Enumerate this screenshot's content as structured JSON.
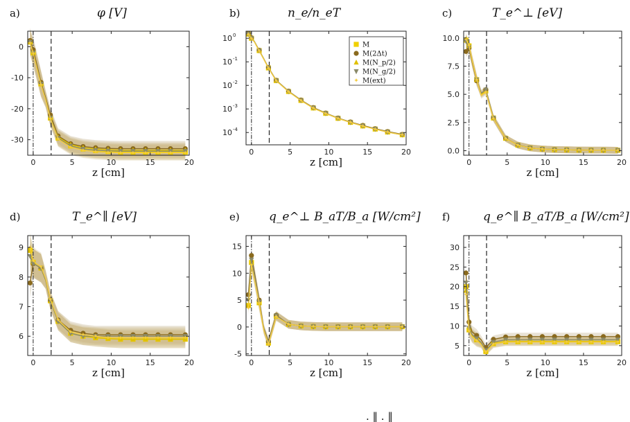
{
  "figure": {
    "xlabel": "z [cm]",
    "legend_entries": [
      "M",
      "M(2Δt)",
      "M(N_p/2)",
      "M(N_g/2)",
      "M(ext)"
    ],
    "footer_note": ". ‖ . ‖"
  },
  "colors": {
    "M": "#f0d000",
    "M(2Δt)": "#8a6a1e",
    "M(N_p/2)": "#e0c000",
    "M(N_g/2)": "#8a8a6a",
    "M(ext)": "#f4cc40",
    "band": "#c8b27a"
  },
  "chart_data": [
    {
      "panel": "a)",
      "title": "φ [V]",
      "type": "line",
      "xlim": [
        -0.7,
        20
      ],
      "ylim": [
        -35,
        5
      ],
      "yticks": [
        0,
        -10,
        -20,
        -30
      ],
      "xticks": [
        0,
        5,
        10,
        15,
        20
      ],
      "log": false,
      "x": [
        -0.4,
        0,
        0.4,
        1.0,
        1.6,
        2.2,
        3.2,
        4.8,
        6.4,
        8.0,
        9.6,
        11.2,
        12.8,
        14.4,
        16.0,
        17.6,
        19.5
      ],
      "series": [
        {
          "name": "M",
          "values": [
            1.5,
            -2,
            -6,
            -12,
            -17,
            -23,
            -29.5,
            -32,
            -33,
            -33.5,
            -33.8,
            -34,
            -34,
            -34,
            -34,
            -34,
            -34
          ]
        },
        {
          "name": "M(2Δt)",
          "values": [
            2.0,
            -1,
            -5,
            -11.5,
            -16.5,
            -22,
            -28.8,
            -31.3,
            -32.2,
            -32.6,
            -32.8,
            -32.9,
            -32.9,
            -32.9,
            -32.9,
            -32.9,
            -32.9
          ]
        },
        {
          "name": "M(N_p/2)",
          "values": [
            1.5,
            -2,
            -6,
            -12,
            -17,
            -23,
            -29.2,
            -31.6,
            -32.6,
            -33,
            -33.2,
            -33.4,
            -33.4,
            -33.4,
            -33.4,
            -33.4,
            -33.4
          ]
        },
        {
          "name": "M(N_g/2)",
          "values": [
            1.5,
            -2,
            -6,
            -12,
            -17,
            -23,
            -29.5,
            -32,
            -33,
            -33.4,
            -33.6,
            -33.7,
            -33.7,
            -33.7,
            -33.7,
            -33.7,
            -33.7
          ]
        },
        {
          "name": "M(ext)",
          "values": [
            1.2,
            -2.2,
            -6.2,
            -12.3,
            -17.2,
            -23.2,
            -29.8,
            -32.4,
            -33.4,
            -33.9,
            -34.1,
            -34.2,
            -34.2,
            -34.2,
            -34.2,
            -34.2,
            -34.2
          ]
        }
      ],
      "band": 2.5
    },
    {
      "panel": "b)",
      "title": "n_e/n_eT",
      "type": "line",
      "xlim": [
        -0.7,
        20
      ],
      "ylim": [
        3e-05,
        2
      ],
      "yticks": [
        1,
        0.1,
        0.01,
        0.001,
        0.0001
      ],
      "yticklabels": [
        "10^0",
        "10^-1",
        "10^-2",
        "10^-3",
        "10^-4"
      ],
      "xticks": [
        0,
        5,
        10,
        15,
        20
      ],
      "log": true,
      "legend": "top-right",
      "x": [
        -0.4,
        0,
        0.4,
        1.0,
        1.6,
        2.2,
        3.2,
        4.8,
        6.4,
        8.0,
        9.6,
        11.2,
        12.8,
        14.4,
        16.0,
        17.6,
        19.5
      ],
      "series": [
        {
          "name": "M",
          "values": [
            1.5,
            1.0,
            0.7,
            0.3,
            0.13,
            0.055,
            0.016,
            0.0055,
            0.0023,
            0.0011,
            0.00065,
            0.0004,
            0.00027,
            0.00019,
            0.00014,
            0.000105,
            8e-05
          ]
        },
        {
          "name": "M(2Δt)",
          "values": [
            1.6,
            1.05,
            0.72,
            0.31,
            0.135,
            0.057,
            0.0165,
            0.0057,
            0.0024,
            0.00115,
            0.00067,
            0.00041,
            0.00028,
            0.0002,
            0.000145,
            0.00011,
            8.3e-05
          ]
        },
        {
          "name": "M(N_p/2)",
          "values": [
            1.5,
            1.0,
            0.7,
            0.3,
            0.13,
            0.055,
            0.016,
            0.0055,
            0.0023,
            0.0011,
            0.00065,
            0.0004,
            0.00027,
            0.00019,
            0.00014,
            0.000105,
            8e-05
          ]
        },
        {
          "name": "M(N_g/2)",
          "values": [
            1.5,
            1.0,
            0.7,
            0.3,
            0.13,
            0.055,
            0.016,
            0.0055,
            0.0023,
            0.0011,
            0.00065,
            0.0004,
            0.00027,
            0.00019,
            0.00014,
            0.000105,
            8e-05
          ]
        },
        {
          "name": "M(ext)",
          "values": [
            1.45,
            0.98,
            0.68,
            0.29,
            0.128,
            0.054,
            0.0158,
            0.0054,
            0.00228,
            0.00108,
            0.00064,
            0.000395,
            0.000268,
            0.000188,
            0.000138,
            0.000104,
            7.9e-05
          ]
        }
      ],
      "band": 0
    },
    {
      "panel": "c)",
      "title": "T_e^⊥ [eV]",
      "type": "line",
      "xlim": [
        -0.7,
        20
      ],
      "ylim": [
        -0.4,
        10.6
      ],
      "yticks": [
        0,
        2.5,
        5,
        7.5,
        10
      ],
      "yticklabels": [
        "0.0",
        "2.5",
        "5.0",
        "7.5",
        "10.0"
      ],
      "xticks": [
        0,
        5,
        10,
        15,
        20
      ],
      "log": false,
      "x": [
        -0.4,
        0,
        0.4,
        1.0,
        1.6,
        2.2,
        3.2,
        4.8,
        6.4,
        8.0,
        9.6,
        11.2,
        12.8,
        14.4,
        16.0,
        17.6,
        19.5
      ],
      "series": [
        {
          "name": "M",
          "values": [
            9.8,
            9.3,
            8.0,
            6.3,
            5.0,
            5.3,
            2.9,
            1.1,
            0.5,
            0.25,
            0.15,
            0.1,
            0.08,
            0.06,
            0.05,
            0.05,
            0.04
          ]
        },
        {
          "name": "M(2Δt)",
          "values": [
            8.8,
            9.1,
            7.9,
            6.2,
            5.1,
            5.4,
            2.9,
            1.1,
            0.5,
            0.25,
            0.15,
            0.1,
            0.08,
            0.06,
            0.05,
            0.05,
            0.04
          ]
        },
        {
          "name": "M(N_p/2)",
          "values": [
            9.9,
            9.3,
            8.0,
            6.3,
            5.0,
            5.3,
            2.9,
            1.1,
            0.5,
            0.25,
            0.15,
            0.1,
            0.08,
            0.06,
            0.05,
            0.05,
            0.04
          ]
        },
        {
          "name": "M(N_g/2)",
          "values": [
            9.7,
            9.2,
            8.0,
            6.3,
            5.1,
            5.4,
            2.9,
            1.1,
            0.5,
            0.25,
            0.15,
            0.1,
            0.08,
            0.06,
            0.05,
            0.05,
            0.04
          ]
        },
        {
          "name": "M(ext)",
          "values": [
            9.9,
            9.35,
            8.05,
            6.3,
            4.9,
            5.2,
            2.85,
            1.08,
            0.49,
            0.24,
            0.15,
            0.1,
            0.08,
            0.06,
            0.05,
            0.05,
            0.04
          ]
        }
      ],
      "band": 0.3
    },
    {
      "panel": "d)",
      "title": "T_e^∥ [eV]",
      "type": "line",
      "xlim": [
        -0.7,
        20
      ],
      "ylim": [
        5.35,
        9.4
      ],
      "yticks": [
        6,
        7,
        8,
        9
      ],
      "xticks": [
        0,
        5,
        10,
        15,
        20
      ],
      "log": false,
      "x": [
        -0.4,
        0,
        0.4,
        1.0,
        1.6,
        2.2,
        3.2,
        4.8,
        6.4,
        8.0,
        9.6,
        11.2,
        12.8,
        14.4,
        16.0,
        17.6,
        19.5
      ],
      "series": [
        {
          "name": "M",
          "values": [
            8.9,
            8.5,
            8.4,
            8.3,
            7.9,
            7.2,
            6.5,
            6.1,
            6.0,
            5.95,
            5.92,
            5.9,
            5.9,
            5.9,
            5.9,
            5.9,
            5.9
          ]
        },
        {
          "name": "M(2Δt)",
          "values": [
            7.8,
            8.45,
            8.4,
            8.3,
            7.9,
            7.2,
            6.55,
            6.2,
            6.1,
            6.05,
            6.05,
            6.05,
            6.05,
            6.05,
            6.05,
            6.05,
            6.05
          ]
        },
        {
          "name": "M(N_p/2)",
          "values": [
            8.9,
            8.5,
            8.4,
            8.3,
            7.9,
            7.2,
            6.5,
            6.1,
            6.0,
            5.95,
            5.92,
            5.9,
            5.9,
            5.9,
            5.9,
            5.9,
            5.9
          ]
        },
        {
          "name": "M(N_g/2)",
          "values": [
            8.7,
            8.45,
            8.4,
            8.3,
            7.9,
            7.2,
            6.5,
            6.1,
            6.0,
            6.0,
            6.0,
            6.0,
            6.0,
            6.0,
            6.0,
            6.0,
            6.0
          ]
        },
        {
          "name": "M(ext)",
          "values": [
            9.0,
            8.55,
            8.45,
            8.35,
            7.95,
            7.25,
            6.55,
            6.15,
            6.05,
            6.0,
            5.95,
            5.95,
            5.95,
            5.95,
            5.95,
            5.95,
            5.95
          ]
        }
      ],
      "band": 0.3
    },
    {
      "panel": "e)",
      "title": "q_e^⊥ B_aT/B_a [W/cm²]",
      "type": "line",
      "xlim": [
        -0.7,
        20
      ],
      "ylim": [
        -5.3,
        17
      ],
      "yticks": [
        -5,
        0,
        5,
        10,
        15
      ],
      "xticks": [
        0,
        5,
        10,
        15,
        20
      ],
      "log": false,
      "x": [
        -0.4,
        0,
        0.4,
        1.0,
        1.6,
        2.2,
        3.2,
        4.8,
        6.4,
        8.0,
        9.6,
        11.2,
        12.8,
        14.4,
        16.0,
        17.6,
        19.5
      ],
      "series": [
        {
          "name": "M",
          "values": [
            4.0,
            12.0,
            9.0,
            4.5,
            -0.5,
            -3.0,
            2.0,
            0.5,
            0.2,
            0.1,
            0.05,
            0.05,
            0.05,
            0.05,
            0.05,
            0.05,
            0.05
          ]
        },
        {
          "name": "M(2Δt)",
          "values": [
            6.0,
            13.3,
            10.0,
            5.0,
            -0.3,
            -2.7,
            2.2,
            0.5,
            0.2,
            0.1,
            0.05,
            0.05,
            0.05,
            0.05,
            0.05,
            0.05,
            0.05
          ]
        },
        {
          "name": "M(N_p/2)",
          "values": [
            4.0,
            12.0,
            9.0,
            4.5,
            -0.5,
            -3.0,
            2.0,
            0.5,
            0.2,
            0.1,
            0.05,
            0.05,
            0.05,
            0.05,
            0.05,
            0.05,
            0.05
          ]
        },
        {
          "name": "M(N_g/2)",
          "values": [
            5.0,
            12.5,
            9.5,
            4.7,
            -0.4,
            -2.9,
            2.1,
            0.5,
            0.2,
            0.1,
            0.05,
            0.05,
            0.05,
            0.05,
            0.05,
            0.05,
            0.05
          ]
        },
        {
          "name": "M(ext)",
          "values": [
            3.5,
            11.5,
            8.8,
            4.4,
            -0.6,
            -3.2,
            1.9,
            0.5,
            0.2,
            0.1,
            0.05,
            0.05,
            0.05,
            0.05,
            0.05,
            0.05,
            0.05
          ]
        }
      ],
      "band": 0.8
    },
    {
      "panel": "f)",
      "title": "q_e^∥ B_aT/B_a [W/cm²]",
      "type": "line",
      "xlim": [
        -0.7,
        20
      ],
      "ylim": [
        2.5,
        33
      ],
      "yticks": [
        5,
        10,
        15,
        20,
        25,
        30
      ],
      "xticks": [
        0,
        5,
        10,
        15,
        20
      ],
      "log": false,
      "x": [
        -0.4,
        0,
        0.4,
        1.0,
        1.6,
        2.2,
        3.2,
        4.8,
        6.4,
        8.0,
        9.6,
        11.2,
        12.8,
        14.4,
        16.0,
        17.6,
        19.5
      ],
      "series": [
        {
          "name": "M",
          "values": [
            20,
            9.0,
            7.5,
            6.5,
            5.5,
            3.5,
            5.5,
            6.0,
            6.0,
            6.0,
            6.0,
            6.0,
            6.0,
            6.0,
            6.0,
            6.0,
            6.0
          ]
        },
        {
          "name": "M(2Δt)",
          "values": [
            23.5,
            11,
            8.5,
            7.6,
            6.5,
            4.5,
            6.6,
            7.2,
            7.3,
            7.3,
            7.3,
            7.3,
            7.3,
            7.3,
            7.3,
            7.3,
            7.3
          ]
        },
        {
          "name": "M(N_p/2)",
          "values": [
            19,
            9.0,
            7.5,
            6.5,
            5.5,
            3.6,
            5.6,
            6.1,
            6.1,
            6.1,
            6.1,
            6.1,
            6.1,
            6.1,
            6.1,
            6.1,
            6.1
          ]
        },
        {
          "name": "M(N_g/2)",
          "values": [
            21,
            9.5,
            7.8,
            6.8,
            5.8,
            3.8,
            5.9,
            6.5,
            6.5,
            6.5,
            6.5,
            6.5,
            6.5,
            6.5,
            6.5,
            6.5,
            6.5
          ]
        },
        {
          "name": "M(ext)",
          "values": [
            18,
            8.8,
            7.3,
            6.3,
            5.3,
            3.4,
            5.4,
            5.9,
            5.9,
            5.9,
            5.9,
            5.9,
            5.9,
            5.9,
            5.9,
            5.9,
            5.9
          ]
        }
      ],
      "band": 1.0
    }
  ]
}
